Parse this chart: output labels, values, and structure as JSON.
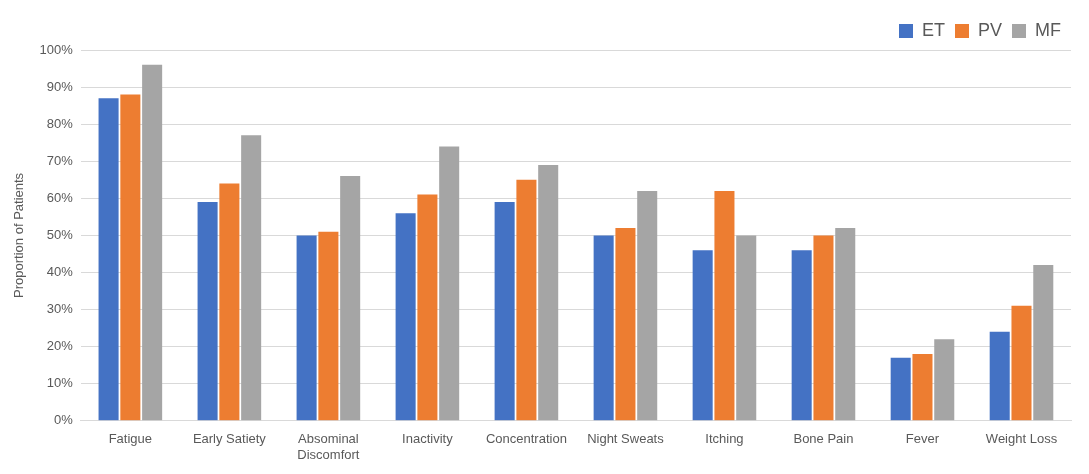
{
  "chart_data": {
    "type": "bar",
    "ylabel": "Proportion of Patients",
    "categories": [
      "Fatigue",
      "Early Satiety",
      "Absominal Discomfort",
      "Inactivity",
      "Concentration",
      "Night Sweats",
      "Itching",
      "Bone Pain",
      "Fever",
      "Weight Loss"
    ],
    "series": [
      {
        "name": "ET",
        "color": "#4472c4",
        "values": [
          87,
          59,
          50,
          56,
          59,
          50,
          46,
          46,
          17,
          24
        ]
      },
      {
        "name": "PV",
        "color": "#ed7d31",
        "values": [
          88,
          64,
          51,
          61,
          65,
          52,
          62,
          50,
          18,
          31
        ]
      },
      {
        "name": "MF",
        "color": "#a5a5a5",
        "values": [
          96,
          77,
          66,
          74,
          69,
          62,
          50,
          52,
          22,
          42
        ]
      }
    ],
    "ylim": [
      0,
      100
    ],
    "yticks": [
      {
        "value": 0,
        "label": "0%"
      },
      {
        "value": 10,
        "label": "10%"
      },
      {
        "value": 20,
        "label": "20%"
      },
      {
        "value": 30,
        "label": "30%"
      },
      {
        "value": 40,
        "label": "40%"
      },
      {
        "value": 50,
        "label": "50%"
      },
      {
        "value": 60,
        "label": "60%"
      },
      {
        "value": 70,
        "label": "70%"
      },
      {
        "value": 80,
        "label": "80%"
      },
      {
        "value": 90,
        "label": "90%"
      },
      {
        "value": 100,
        "label": "100%"
      }
    ],
    "grid": "y",
    "legend": "top right"
  }
}
